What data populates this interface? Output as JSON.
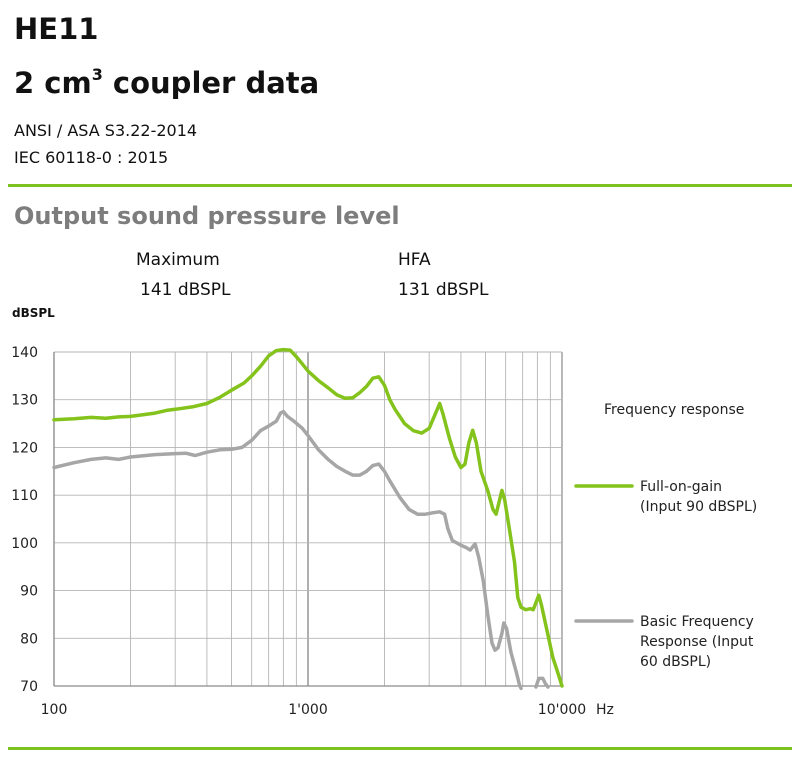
{
  "header": {
    "model": "HE11",
    "subtitle_pre": "2 cm",
    "subtitle_sup": "3",
    "subtitle_post": " coupler data",
    "standard_1": "ANSI / ASA S3.22-2014",
    "standard_2": "IEC 60118-0 : 2015"
  },
  "section": {
    "title": "Output sound pressure level",
    "maximum_label": "Maximum",
    "maximum_value": "141 dBSPL",
    "hfa_label": "HFA",
    "hfa_value": "131 dBSPL"
  },
  "colors": {
    "accent": "#7dc21e",
    "green_series": "#84c31c",
    "gray_series": "#a6a6a6",
    "grid": "#b5b5b5",
    "heading_gray": "#7d7d7d"
  },
  "chart_data": {
    "type": "line",
    "xscale": "log",
    "xlim": [
      100,
      10000
    ],
    "ylim": [
      70,
      140
    ],
    "ylabel": "dBSPL",
    "xunit": "Hz",
    "yticks": [
      140,
      130,
      120,
      110,
      100,
      90,
      80,
      70
    ],
    "xticks": [
      100,
      1000,
      10000
    ],
    "xtick_labels": [
      "100",
      "1'000",
      "10'000"
    ],
    "grid": true,
    "legend_title": "Frequency response",
    "legend_position": "right",
    "series": [
      {
        "name": "Full-on-gain (Input 90 dBSPL)",
        "legend_lines": [
          "Full-on-gain",
          "(Input 90 dBSPL)"
        ],
        "color": "#84c31c",
        "points": [
          [
            100,
            125.8
          ],
          [
            120,
            126
          ],
          [
            140,
            126.3
          ],
          [
            160,
            126.1
          ],
          [
            180,
            126.4
          ],
          [
            200,
            126.5
          ],
          [
            250,
            127.2
          ],
          [
            280,
            127.8
          ],
          [
            300,
            128
          ],
          [
            350,
            128.5
          ],
          [
            400,
            129.2
          ],
          [
            450,
            130.5
          ],
          [
            500,
            132
          ],
          [
            560,
            133.5
          ],
          [
            600,
            135
          ],
          [
            650,
            137
          ],
          [
            700,
            139.2
          ],
          [
            750,
            140.3
          ],
          [
            800,
            140.5
          ],
          [
            850,
            140.4
          ],
          [
            900,
            139
          ],
          [
            950,
            137.5
          ],
          [
            1000,
            136
          ],
          [
            1100,
            134
          ],
          [
            1200,
            132.5
          ],
          [
            1300,
            131
          ],
          [
            1400,
            130.3
          ],
          [
            1500,
            130.4
          ],
          [
            1600,
            131.5
          ],
          [
            1700,
            132.8
          ],
          [
            1800,
            134.5
          ],
          [
            1900,
            134.8
          ],
          [
            2000,
            133
          ],
          [
            2100,
            130
          ],
          [
            2200,
            128
          ],
          [
            2400,
            125
          ],
          [
            2600,
            123.5
          ],
          [
            2800,
            123
          ],
          [
            3000,
            124
          ],
          [
            3200,
            127.5
          ],
          [
            3300,
            129.2
          ],
          [
            3400,
            127
          ],
          [
            3600,
            122
          ],
          [
            3800,
            118
          ],
          [
            4000,
            115.8
          ],
          [
            4150,
            116.5
          ],
          [
            4300,
            121
          ],
          [
            4450,
            123.6
          ],
          [
            4600,
            121
          ],
          [
            4800,
            115
          ],
          [
            5100,
            111
          ],
          [
            5350,
            107
          ],
          [
            5500,
            106
          ],
          [
            5650,
            108.5
          ],
          [
            5800,
            111
          ],
          [
            5950,
            109
          ],
          [
            6200,
            103
          ],
          [
            6500,
            96
          ],
          [
            6700,
            88.5
          ],
          [
            6900,
            86.5
          ],
          [
            7200,
            86
          ],
          [
            7500,
            86.2
          ],
          [
            7700,
            86
          ],
          [
            7900,
            87.5
          ],
          [
            8100,
            89
          ],
          [
            8300,
            87
          ],
          [
            8700,
            82
          ],
          [
            9200,
            76
          ],
          [
            9600,
            73
          ],
          [
            10000,
            70
          ]
        ]
      },
      {
        "name": "Basic Frequency Response (Input 60 dBSPL)",
        "legend_lines": [
          "Basic Frequency",
          "Response (Input",
          "60 dBSPL)"
        ],
        "color": "#a6a6a6",
        "points": [
          [
            100,
            115.8
          ],
          [
            120,
            116.8
          ],
          [
            140,
            117.5
          ],
          [
            160,
            117.8
          ],
          [
            180,
            117.5
          ],
          [
            200,
            118
          ],
          [
            250,
            118.5
          ],
          [
            300,
            118.7
          ],
          [
            330,
            118.8
          ],
          [
            360,
            118.3
          ],
          [
            400,
            119
          ],
          [
            450,
            119.5
          ],
          [
            500,
            119.6
          ],
          [
            550,
            120
          ],
          [
            600,
            121.5
          ],
          [
            650,
            123.5
          ],
          [
            700,
            124.5
          ],
          [
            750,
            125.5
          ],
          [
            780,
            127.2
          ],
          [
            800,
            127.5
          ],
          [
            830,
            126.5
          ],
          [
            880,
            125.5
          ],
          [
            950,
            124
          ],
          [
            1000,
            122.5
          ],
          [
            1100,
            119.5
          ],
          [
            1200,
            117.5
          ],
          [
            1300,
            116
          ],
          [
            1400,
            115
          ],
          [
            1500,
            114.2
          ],
          [
            1600,
            114.2
          ],
          [
            1700,
            115
          ],
          [
            1800,
            116.2
          ],
          [
            1900,
            116.5
          ],
          [
            2000,
            115
          ],
          [
            2100,
            113
          ],
          [
            2300,
            109.5
          ],
          [
            2500,
            107
          ],
          [
            2700,
            106
          ],
          [
            2900,
            106
          ],
          [
            3100,
            106.3
          ],
          [
            3300,
            106.5
          ],
          [
            3450,
            106
          ],
          [
            3550,
            103
          ],
          [
            3700,
            100.5
          ],
          [
            3850,
            100
          ],
          [
            4000,
            99.5
          ],
          [
            4200,
            99
          ],
          [
            4350,
            98.5
          ],
          [
            4550,
            99.8
          ],
          [
            4700,
            97
          ],
          [
            4900,
            92
          ],
          [
            5100,
            85
          ],
          [
            5300,
            79
          ],
          [
            5450,
            77.5
          ],
          [
            5600,
            78
          ],
          [
            5800,
            81
          ],
          [
            5900,
            83.2
          ],
          [
            6050,
            82
          ],
          [
            6300,
            77
          ],
          [
            6600,
            73
          ],
          [
            6800,
            70.2
          ],
          [
            6900,
            69.5
          ]
        ]
      },
      {
        "name": "",
        "color": "#a6a6a6",
        "points": [
          [
            7900,
            69.8
          ],
          [
            8100,
            71.6
          ],
          [
            8400,
            71.6
          ],
          [
            8600,
            70.5
          ],
          [
            8800,
            69.8
          ]
        ]
      }
    ]
  }
}
